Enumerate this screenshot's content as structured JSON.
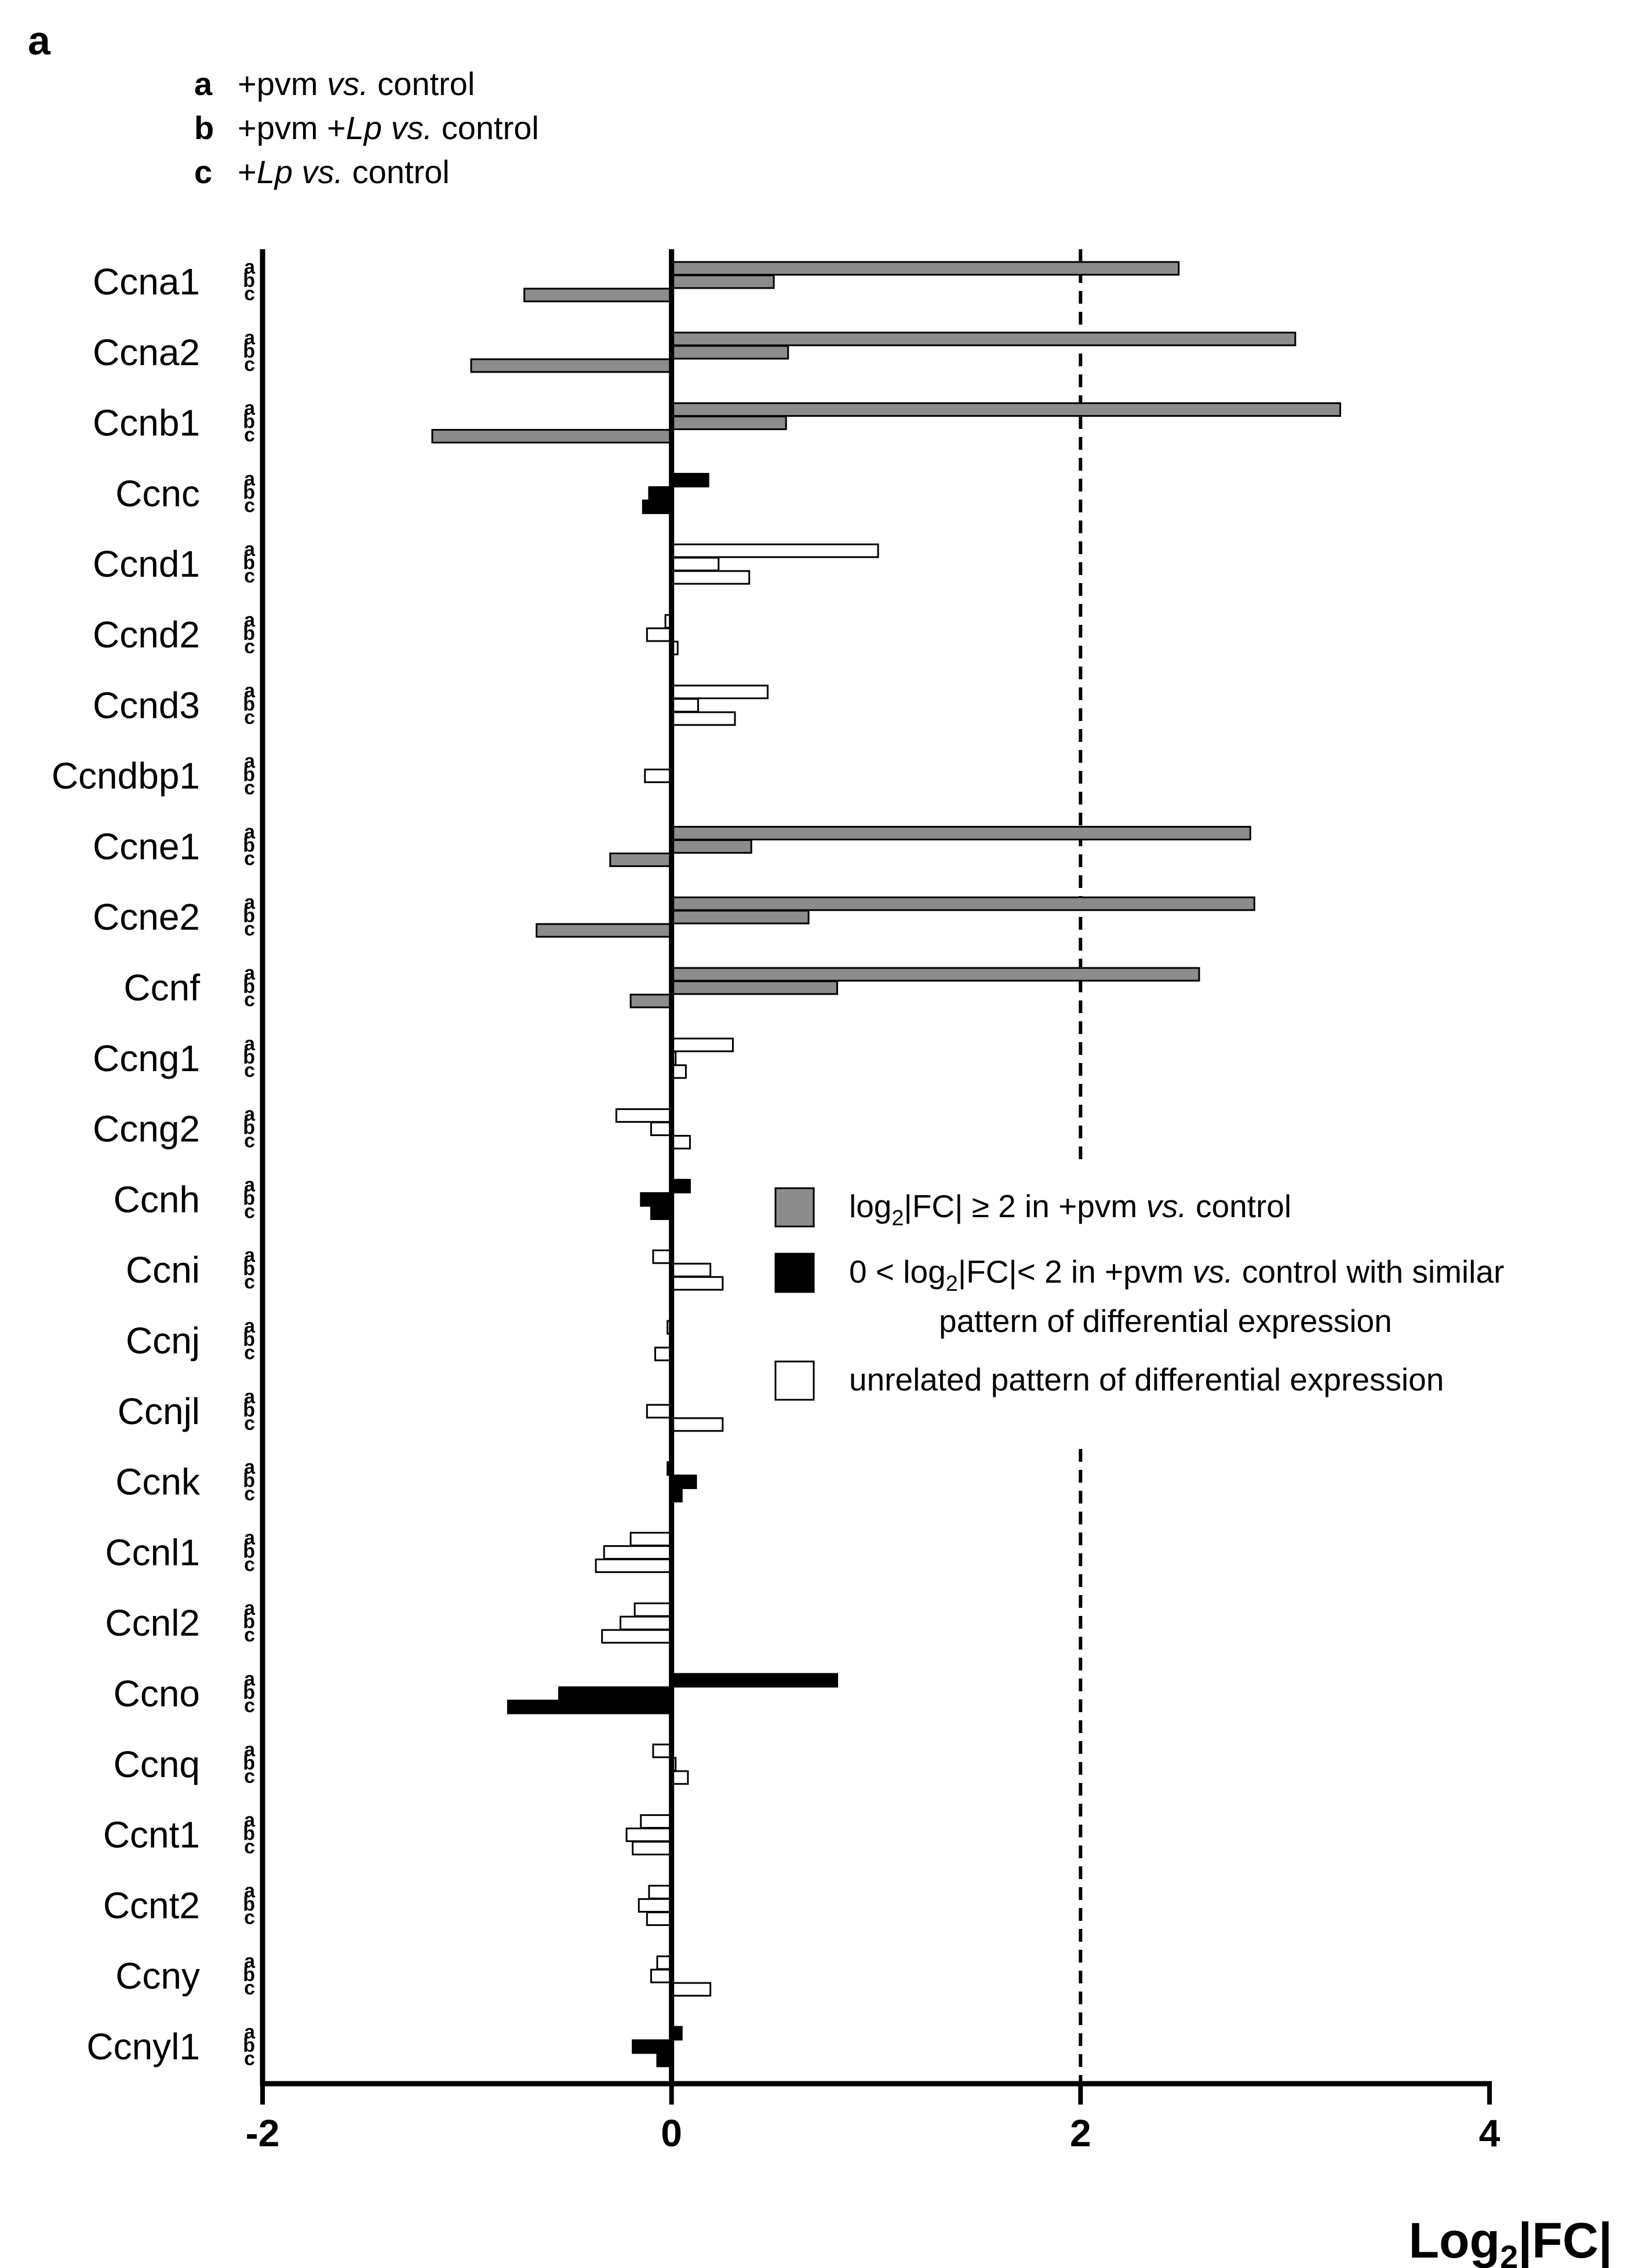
{
  "panel_label": "a",
  "conditions": [
    {
      "key": "a",
      "parts": [
        {
          "t": "+pvm ",
          "i": false
        },
        {
          "t": "vs.",
          "i": true
        },
        {
          "t": " control",
          "i": false
        }
      ]
    },
    {
      "key": "b",
      "parts": [
        {
          "t": "+pvm +",
          "i": false
        },
        {
          "t": "Lp vs.",
          "i": true
        },
        {
          "t": " control",
          "i": false
        }
      ]
    },
    {
      "key": "c",
      "parts": [
        {
          "t": "+",
          "i": false
        },
        {
          "t": "Lp vs.",
          "i": true
        },
        {
          "t": " control",
          "i": false
        }
      ]
    }
  ],
  "colors": {
    "gray": "#8c8c8c",
    "black": "#000000",
    "white": "#ffffff",
    "axis": "#000000"
  },
  "chart_data": {
    "type": "bar",
    "orientation": "horizontal",
    "xlabel": "Log2|FC|",
    "xlim": [
      -2,
      4
    ],
    "xticks": [
      -2,
      0,
      2,
      4
    ],
    "threshold_line": 2,
    "subcategories": [
      "a",
      "b",
      "c"
    ],
    "legend": [
      {
        "style": "gray",
        "parts": [
          {
            "t": "log",
            "s": ""
          },
          {
            "t": "2",
            "s": "sub"
          },
          {
            "t": "|FC| ≥ 2 in +pvm ",
            "s": ""
          },
          {
            "t": "vs.",
            "s": "i"
          },
          {
            "t": " control",
            "s": ""
          }
        ]
      },
      {
        "style": "black",
        "parts": [
          {
            "t": "0 < log",
            "s": ""
          },
          {
            "t": "2",
            "s": "sub"
          },
          {
            "t": "|FC|< 2 in +pvm ",
            "s": ""
          },
          {
            "t": "vs.",
            "s": "i"
          },
          {
            "t": " control with similar",
            "s": ""
          }
        ],
        "line2": "pattern of differential expression"
      },
      {
        "style": "white",
        "parts": [
          {
            "t": "unrelated pattern of differential expression",
            "s": ""
          }
        ]
      }
    ],
    "genes": [
      {
        "name": "Ccna1",
        "style": "gray",
        "values": [
          2.48,
          0.5,
          -0.72
        ]
      },
      {
        "name": "Ccna2",
        "style": "gray",
        "values": [
          3.05,
          0.57,
          -0.98
        ]
      },
      {
        "name": "Ccnb1",
        "style": "gray",
        "values": [
          3.27,
          0.56,
          -1.17
        ]
      },
      {
        "name": "Ccnc",
        "style": "black",
        "values": [
          0.18,
          -0.11,
          -0.14
        ]
      },
      {
        "name": "Ccnd1",
        "style": "white",
        "values": [
          1.01,
          0.23,
          0.38
        ]
      },
      {
        "name": "Ccnd2",
        "style": "white",
        "values": [
          -0.03,
          -0.12,
          0.03
        ]
      },
      {
        "name": "Ccnd3",
        "style": "white",
        "values": [
          0.47,
          0.13,
          0.31
        ]
      },
      {
        "name": "Ccndbp1",
        "style": "white",
        "values": [
          0.0,
          -0.13,
          0.0
        ]
      },
      {
        "name": "Ccne1",
        "style": "gray",
        "values": [
          2.83,
          0.39,
          -0.3
        ]
      },
      {
        "name": "Ccne2",
        "style": "gray",
        "values": [
          2.85,
          0.67,
          -0.66
        ]
      },
      {
        "name": "Ccnf",
        "style": "gray",
        "values": [
          2.58,
          0.81,
          -0.2
        ]
      },
      {
        "name": "Ccng1",
        "style": "white",
        "values": [
          0.3,
          0.02,
          0.07
        ]
      },
      {
        "name": "Ccng2",
        "style": "white",
        "values": [
          -0.27,
          -0.1,
          0.09
        ]
      },
      {
        "name": "Ccnh",
        "style": "black",
        "values": [
          0.09,
          -0.15,
          -0.1
        ]
      },
      {
        "name": "Ccni",
        "style": "white",
        "values": [
          -0.09,
          0.19,
          0.25
        ]
      },
      {
        "name": "Ccnj",
        "style": "white",
        "values": [
          -0.02,
          0.0,
          -0.08
        ]
      },
      {
        "name": "Ccnjl",
        "style": "white",
        "values": [
          0.0,
          -0.12,
          0.25
        ]
      },
      {
        "name": "Ccnk",
        "style": "black",
        "values": [
          -0.02,
          0.12,
          0.05
        ]
      },
      {
        "name": "Ccnl1",
        "style": "white",
        "values": [
          -0.2,
          -0.33,
          -0.37
        ]
      },
      {
        "name": "Ccnl2",
        "style": "white",
        "values": [
          -0.18,
          -0.25,
          -0.34
        ]
      },
      {
        "name": "Ccno",
        "style": "black",
        "values": [
          0.81,
          -0.55,
          -0.8
        ]
      },
      {
        "name": "Ccnq",
        "style": "white",
        "values": [
          -0.09,
          0.02,
          0.08
        ]
      },
      {
        "name": "Ccnt1",
        "style": "white",
        "values": [
          -0.15,
          -0.22,
          -0.19
        ]
      },
      {
        "name": "Ccnt2",
        "style": "white",
        "values": [
          -0.11,
          -0.16,
          -0.12
        ]
      },
      {
        "name": "Ccny",
        "style": "white",
        "values": [
          -0.07,
          -0.1,
          0.19
        ]
      },
      {
        "name": "Ccnyl1",
        "style": "black",
        "values": [
          0.05,
          -0.19,
          -0.07
        ]
      }
    ]
  }
}
